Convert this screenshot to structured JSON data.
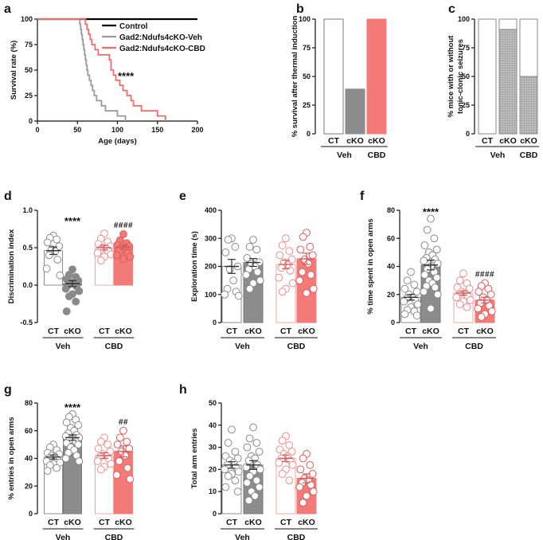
{
  "chart_data": [
    {
      "panel": "a",
      "type": "line",
      "xlabel": "Age (days)",
      "ylabel": "Survival rate (%)",
      "xlim": [
        0,
        200
      ],
      "ylim": [
        0,
        100
      ],
      "xticks": [
        "0",
        "50",
        "100",
        "150",
        "200"
      ],
      "yticks": [
        "0",
        "25",
        "50",
        "75",
        "100"
      ],
      "series": [
        {
          "name": "Control",
          "color": "#000000",
          "x": [
            0,
            200
          ],
          "y": [
            100,
            100
          ]
        },
        {
          "name": "Gad2:Ndufs4cKO-Veh",
          "color": "#999999",
          "x": [
            0,
            52,
            53,
            54,
            55,
            56,
            57,
            58,
            59,
            60,
            61,
            62,
            63,
            65,
            67,
            69,
            71,
            74,
            80,
            85,
            90,
            95,
            100,
            105,
            110
          ],
          "y": [
            100,
            100,
            95,
            90,
            85,
            80,
            75,
            70,
            65,
            60,
            55,
            50,
            45,
            40,
            35,
            30,
            25,
            20,
            15,
            10,
            10,
            10,
            5,
            5,
            0
          ]
        },
        {
          "name": "Gad2:Ndufs4cKO-CBD",
          "color": "#f06b6b",
          "x": [
            0,
            58,
            60,
            62,
            64,
            66,
            68,
            72,
            76,
            80,
            90,
            92,
            95,
            98,
            103,
            107,
            112,
            117,
            120,
            125,
            130,
            140,
            145,
            150,
            155,
            160
          ],
          "y": [
            100,
            100,
            95,
            90,
            85,
            80,
            75,
            70,
            65,
            65,
            60,
            50,
            45,
            40,
            35,
            30,
            25,
            20,
            15,
            15,
            10,
            10,
            10,
            5,
            5,
            0
          ]
        }
      ],
      "annotation": "****"
    },
    {
      "panel": "b",
      "type": "bar",
      "ylabel": "% survival after thermal induction",
      "ylim": [
        0,
        100
      ],
      "yticks": [
        "0",
        "25",
        "50",
        "75",
        "100"
      ],
      "categories": [
        "CT",
        "cKO",
        "cKO"
      ],
      "groups": [
        "Veh",
        "CBD"
      ],
      "values": [
        100,
        39,
        100
      ]
    },
    {
      "panel": "c",
      "type": "bar",
      "ylabel": "% mice with or without tonic-clonic seizures",
      "ylim": [
        0,
        100
      ],
      "yticks": [
        "0",
        "25",
        "50",
        "75",
        "100"
      ],
      "categories": [
        "CT",
        "cKO",
        "cKO"
      ],
      "groups": [
        "Veh",
        "CBD"
      ],
      "series": [
        {
          "name": "with",
          "values": [
            0,
            91,
            50
          ]
        },
        {
          "name": "without",
          "values": [
            100,
            9,
            50
          ]
        }
      ]
    },
    {
      "panel": "d",
      "type": "bar",
      "ylabel": "Discrimination index",
      "ylim": [
        -0.5,
        1.0
      ],
      "yticks": [
        "-0.5",
        "0.0",
        "0.5",
        "1.0"
      ],
      "categories": [
        "CT",
        "cKO",
        "CT",
        "cKO"
      ],
      "groups": [
        "Veh",
        "CBD"
      ],
      "values": [
        0.46,
        0.02,
        0.5,
        0.51
      ],
      "sem": [
        0.05,
        0.04,
        0.03,
        0.03
      ],
      "annotations": [
        "",
        "****",
        "",
        "####"
      ],
      "points": [
        [
          0.66,
          0.63,
          0.61,
          0.57,
          0.52,
          0.48,
          0.45,
          0.4,
          0.34,
          0.22,
          0.13
        ],
        [
          0.21,
          0.14,
          0.11,
          0.08,
          0.06,
          0.04,
          0.02,
          0.0,
          -0.02,
          -0.05,
          -0.08,
          -0.12,
          -0.15,
          -0.22,
          -0.35
        ],
        [
          0.69,
          0.62,
          0.58,
          0.55,
          0.52,
          0.5,
          0.49,
          0.47,
          0.45,
          0.43,
          0.41,
          0.38,
          0.33
        ],
        [
          0.68,
          0.6,
          0.56,
          0.54,
          0.52,
          0.5,
          0.48,
          0.46,
          0.43,
          0.4,
          0.38,
          0.35
        ]
      ]
    },
    {
      "panel": "e",
      "type": "bar",
      "ylabel": "Exploration time (s)",
      "ylim": [
        0,
        400
      ],
      "yticks": [
        "0",
        "100",
        "200",
        "300",
        "400"
      ],
      "categories": [
        "CT",
        "cKO",
        "CT",
        "cKO"
      ],
      "groups": [
        "Veh",
        "CBD"
      ],
      "values": [
        200,
        214,
        207,
        227
      ],
      "sem": [
        25,
        14,
        15,
        20
      ],
      "points": [
        [
          300,
          295,
          270,
          250,
          200,
          190,
          150,
          120,
          110,
          100,
          95
        ],
        [
          295,
          270,
          260,
          230,
          215,
          210,
          200,
          190,
          180,
          170,
          150,
          140,
          120
        ],
        [
          300,
          275,
          255,
          240,
          225,
          215,
          205,
          195,
          185,
          160,
          140,
          120,
          110
        ],
        [
          320,
          305,
          270,
          260,
          240,
          225,
          210,
          180,
          170,
          150,
          120,
          105
        ]
      ]
    },
    {
      "panel": "f",
      "type": "bar",
      "ylabel": "% time spent in open arms",
      "ylim": [
        0,
        80
      ],
      "yticks": [
        "0",
        "20",
        "40",
        "60",
        "80"
      ],
      "categories": [
        "CT",
        "cKO",
        "CT",
        "cKO"
      ],
      "groups": [
        "Veh",
        "CBD"
      ],
      "values": [
        18,
        41,
        21,
        16
      ],
      "sem": [
        2,
        3.5,
        1.5,
        2
      ],
      "annotations": [
        "",
        "****",
        "",
        "####"
      ],
      "points": [
        [
          36,
          30,
          27,
          24,
          22,
          20,
          18,
          17,
          16,
          15,
          13,
          11,
          9,
          8,
          6,
          5
        ],
        [
          74,
          66,
          60,
          55,
          52,
          50,
          48,
          46,
          45,
          44,
          42,
          40,
          38,
          36,
          34,
          32,
          30,
          28,
          26,
          25,
          22,
          20,
          10
        ],
        [
          35,
          30,
          28,
          25,
          24,
          22,
          21,
          20,
          19,
          18,
          16,
          15,
          13,
          11
        ],
        [
          28,
          26,
          24,
          22,
          20,
          18,
          16,
          14,
          12,
          10,
          8,
          6,
          4
        ]
      ]
    },
    {
      "panel": "g",
      "type": "bar",
      "ylabel": "% entries in open arms",
      "ylim": [
        0,
        80
      ],
      "yticks": [
        "0",
        "20",
        "40",
        "60",
        "80"
      ],
      "categories": [
        "CT",
        "cKO",
        "CT",
        "cKO"
      ],
      "groups": [
        "Veh",
        "CBD"
      ],
      "values": [
        41,
        55,
        42,
        45
      ],
      "sem": [
        1.5,
        2,
        2,
        4
      ],
      "annotations": [
        "",
        "****",
        "",
        "##"
      ],
      "points": [
        [
          50,
          48,
          46,
          44,
          43,
          42,
          41,
          40,
          39,
          38,
          37,
          36,
          35,
          33,
          31
        ],
        [
          72,
          70,
          68,
          66,
          64,
          62,
          60,
          58,
          57,
          56,
          55,
          54,
          53,
          52,
          51,
          50,
          48,
          46,
          44,
          42,
          40,
          38
        ],
        [
          55,
          52,
          50,
          47,
          45,
          43,
          42,
          41,
          40,
          38,
          36,
          34,
          32
        ],
        [
          60,
          55,
          52,
          50,
          47,
          45,
          42,
          38,
          33,
          28,
          25
        ]
      ]
    },
    {
      "panel": "h",
      "type": "bar",
      "ylabel": "Total arm entries",
      "ylim": [
        0,
        50
      ],
      "yticks": [
        "0",
        "10",
        "20",
        "30",
        "40",
        "50"
      ],
      "categories": [
        "CT",
        "cKO",
        "CT",
        "cKO"
      ],
      "groups": [
        "Veh",
        "CBD"
      ],
      "values": [
        22,
        22,
        25,
        16
      ],
      "sem": [
        1.5,
        2,
        1.5,
        2
      ],
      "points": [
        [
          38,
          32,
          28,
          26,
          25,
          24,
          23,
          22,
          21,
          20,
          19,
          18,
          17,
          15,
          12,
          10
        ],
        [
          39,
          34,
          32,
          30,
          28,
          26,
          25,
          24,
          22,
          21,
          20,
          19,
          17,
          15,
          14,
          12,
          10,
          8,
          6
        ],
        [
          35,
          33,
          31,
          29,
          28,
          27,
          26,
          25,
          24,
          23,
          22,
          20,
          18,
          15
        ],
        [
          27,
          25,
          22,
          20,
          18,
          16,
          15,
          14,
          13,
          12,
          10,
          8,
          5
        ]
      ]
    }
  ]
}
